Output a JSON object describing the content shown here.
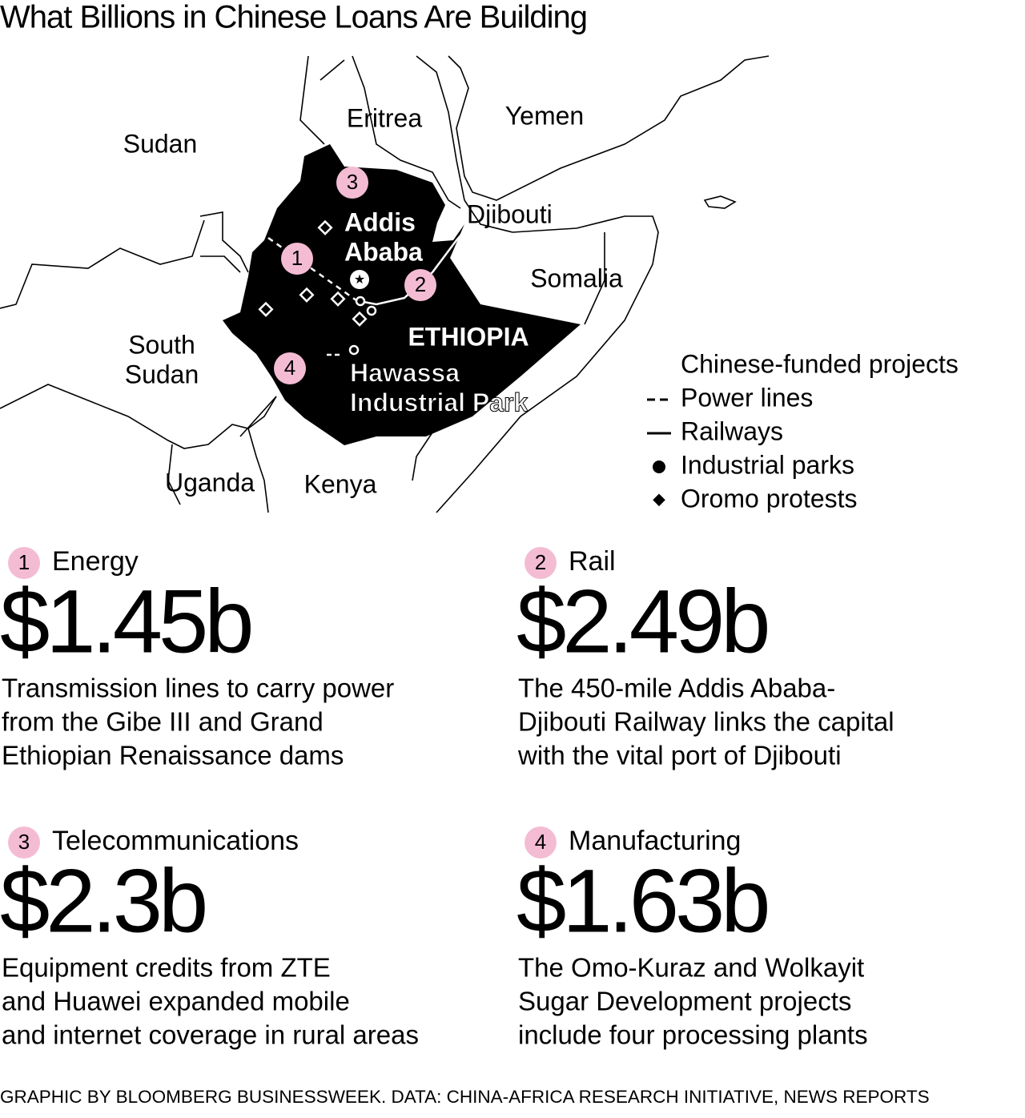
{
  "header": {
    "title": "What Billions in Chinese Loans Are Building"
  },
  "map": {
    "labels": [
      {
        "lines": [
          "Sudan"
        ]
      },
      {
        "lines": [
          "Eritrea"
        ]
      },
      {
        "lines": [
          "Yemen"
        ]
      },
      {
        "lines": [
          "Djibouti"
        ]
      },
      {
        "lines": [
          "Somalia"
        ]
      },
      {
        "lines": [
          "South",
          "Sudan"
        ]
      },
      {
        "lines": [
          "Uganda"
        ]
      },
      {
        "lines": [
          "Kenya"
        ]
      },
      {
        "lines": [
          "ETHIOPIA"
        ]
      },
      {
        "lines": [
          "Addis",
          "Ababa"
        ]
      },
      {
        "lines": [
          "Hawassa",
          "Industrial Park"
        ]
      }
    ],
    "legend": {
      "title": "Chinese-funded projects",
      "items": [
        "Power lines",
        "Railways",
        "Industrial parks",
        "Oromo protests"
      ]
    }
  },
  "cards": [
    {
      "number": "1",
      "category": "Energy",
      "amount": "$1.45b",
      "description": [
        "Transmission lines to carry power",
        "from the Gibe III and Grand",
        "Ethiopian Renaissance dams"
      ]
    },
    {
      "number": "2",
      "category": "Rail",
      "amount": "$2.49b",
      "description": [
        "The 450-mile Addis Ababa-",
        "Djibouti Railway links the capital",
        "with the vital port of Djibouti"
      ]
    },
    {
      "number": "3",
      "category": "Telecommunications",
      "amount": "$2.3b",
      "description": [
        "Equipment credits from ZTE",
        "and Huawei expanded mobile",
        "and internet coverage in rural areas"
      ]
    },
    {
      "number": "4",
      "category": "Manufacturing",
      "amount": "$1.63b",
      "description": [
        "The Omo-Kuraz and Wolkayit",
        "Sugar Development projects",
        "include four processing plants"
      ]
    }
  ],
  "footer": {
    "credit": "GRAPHIC BY BLOOMBERG BUSINESSWEEK. DATA: CHINA-AFRICA RESEARCH INITIATIVE, NEWS REPORTS"
  }
}
